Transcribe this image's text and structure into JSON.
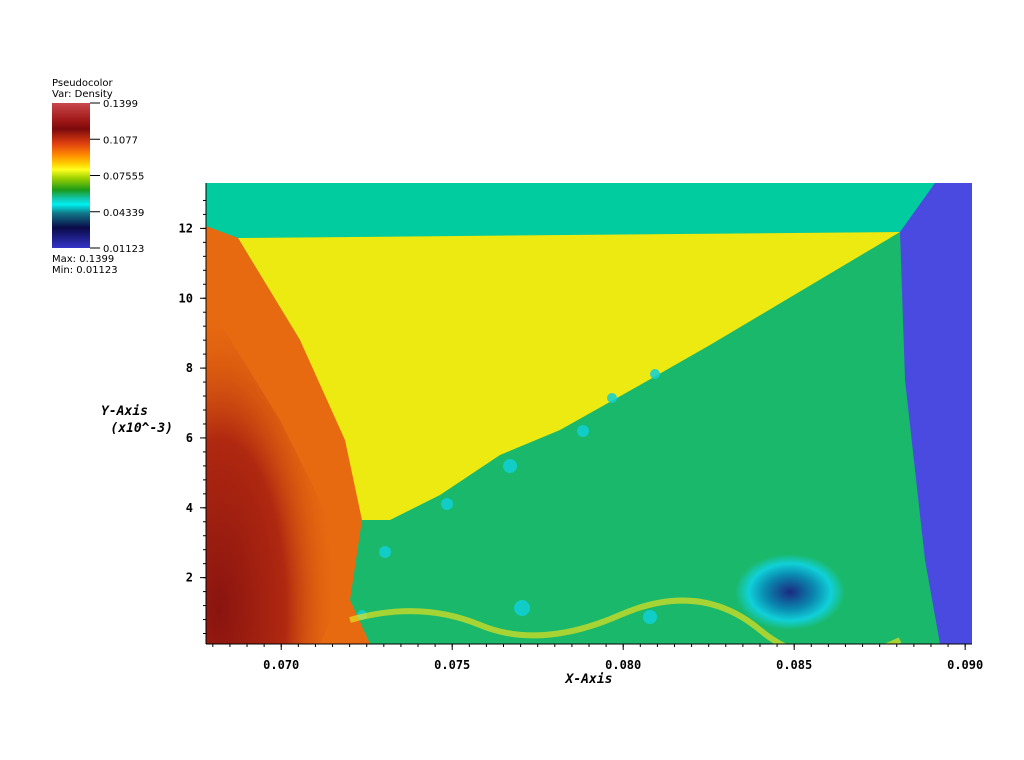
{
  "legend": {
    "title": "Pseudocolor",
    "variable": "Var: Density",
    "ticks": [
      "0.1399",
      "0.1077",
      "0.07555",
      "0.04339",
      "0.01123"
    ],
    "max_label": "Max: 0.1399",
    "min_label": "Min: 0.01123"
  },
  "chart_data": {
    "type": "heatmap",
    "variable": "Density",
    "value_range": [
      0.01123,
      0.1399
    ],
    "xlabel": "X-Axis",
    "ylabel": "Y-Axis",
    "ylabel_units": "(x10^-3)",
    "xlim": [
      0.0678,
      0.0902
    ],
    "ylim": [
      0.1,
      13.3
    ],
    "x_ticks": [
      0.07,
      0.075,
      0.08,
      0.085,
      0.09
    ],
    "x_tick_labels": [
      "0.070",
      "0.075",
      "0.080",
      "0.085",
      "0.090"
    ],
    "y_ticks": [
      2,
      4,
      6,
      8,
      10,
      12
    ],
    "y_tick_labels": [
      "2",
      "4",
      "6",
      "8",
      "10",
      "12"
    ],
    "colormap": [
      "#3434c8",
      "#0a0a48",
      "#00f0f0",
      "#1a9a1a",
      "#ffff20",
      "#ff8c00",
      "#7c0a0a",
      "#c8484b"
    ],
    "regions": {
      "top_band": "#00cca0",
      "yellow_wedge": "#ecea10",
      "orange_region": "#e86a10",
      "dark_core": "#8a1410",
      "green_region": "#1ab86a",
      "blue_right": "#4a4ae0"
    }
  }
}
